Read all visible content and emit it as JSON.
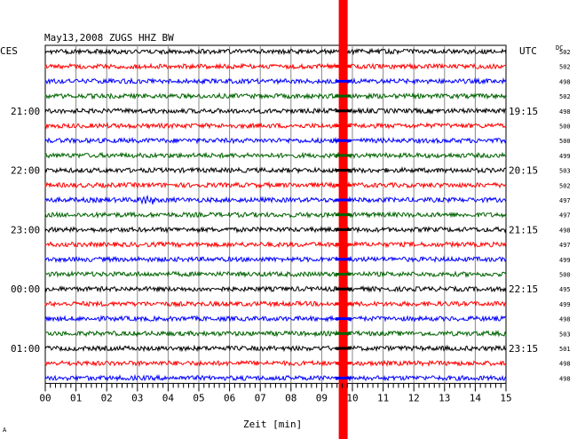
{
  "chart_data": {
    "type": "line",
    "title": "May13,2008   ZUGS HHZ BW",
    "left_timezone": "CES",
    "right_timezone": "UTC",
    "dc_header": "DC",
    "xlabel": "Zeit [min]",
    "x_ticks": [
      "00",
      "01",
      "02",
      "03",
      "04",
      "05",
      "06",
      "07",
      "08",
      "09",
      "10",
      "11",
      "12",
      "13",
      "14",
      "15"
    ],
    "xlim": [
      0,
      15
    ],
    "left_hour_labels": [
      {
        "row": 4,
        "text": "21:00"
      },
      {
        "row": 8,
        "text": "22:00"
      },
      {
        "row": 12,
        "text": "23:00"
      },
      {
        "row": 16,
        "text": "00:00"
      },
      {
        "row": 20,
        "text": "01:00"
      }
    ],
    "right_hour_labels": [
      {
        "row": 4,
        "text": "19:15"
      },
      {
        "row": 8,
        "text": "20:15"
      },
      {
        "row": 12,
        "text": "21:15"
      },
      {
        "row": 16,
        "text": "22:15"
      },
      {
        "row": 20,
        "text": "23:15"
      }
    ],
    "row_colors": [
      "#000000",
      "#ff0000",
      "#0000ff",
      "#006400"
    ],
    "dc_values": [
      "502",
      "502",
      "498",
      "502",
      "498",
      "500",
      "500",
      "499",
      "503",
      "502",
      "497",
      "497",
      "498",
      "497",
      "499",
      "500",
      "495",
      "499",
      "498",
      "503",
      "501",
      "498",
      "498"
    ],
    "event": {
      "minute": 9.7,
      "color": "#ff0000",
      "rows_highlighted_from": 1
    },
    "blue_burst": {
      "row": 10,
      "minute_start": 3.0,
      "minute_end": 3.5
    },
    "footer_mark": "A"
  }
}
